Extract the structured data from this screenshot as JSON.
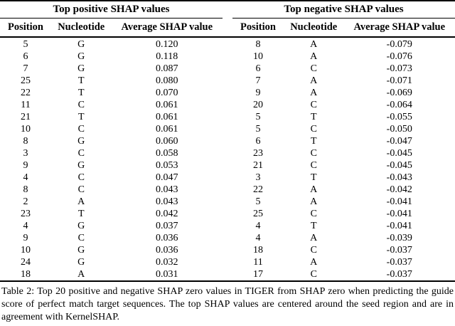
{
  "caption": "Table 2: Top 20 positive and negative SHAP zero values in TIGER from SHAP zero when predicting the guide score of perfect match target sequences. The top SHAP values are centered around the seed region and are in agreement with KernelSHAP.",
  "tables": [
    {
      "title": "Top positive SHAP values",
      "columns": [
        "Position",
        "Nucleotide",
        "Average SHAP value"
      ],
      "rows": [
        [
          "5",
          "G",
          "0.120"
        ],
        [
          "6",
          "G",
          "0.118"
        ],
        [
          "7",
          "G",
          "0.087"
        ],
        [
          "25",
          "T",
          "0.080"
        ],
        [
          "22",
          "T",
          "0.070"
        ],
        [
          "11",
          "C",
          "0.061"
        ],
        [
          "21",
          "T",
          "0.061"
        ],
        [
          "10",
          "C",
          "0.061"
        ],
        [
          "8",
          "G",
          "0.060"
        ],
        [
          "3",
          "C",
          "0.058"
        ],
        [
          "9",
          "G",
          "0.053"
        ],
        [
          "4",
          "C",
          "0.047"
        ],
        [
          "8",
          "C",
          "0.043"
        ],
        [
          "2",
          "A",
          "0.043"
        ],
        [
          "23",
          "T",
          "0.042"
        ],
        [
          "4",
          "G",
          "0.037"
        ],
        [
          "9",
          "C",
          "0.036"
        ],
        [
          "10",
          "G",
          "0.036"
        ],
        [
          "24",
          "G",
          "0.032"
        ],
        [
          "18",
          "A",
          "0.031"
        ]
      ]
    },
    {
      "title": "Top negative SHAP values",
      "columns": [
        "Position",
        "Nucleotide",
        "Average SHAP value"
      ],
      "rows": [
        [
          "8",
          "A",
          "-0.079"
        ],
        [
          "10",
          "A",
          "-0.076"
        ],
        [
          "6",
          "C",
          "-0.073"
        ],
        [
          "7",
          "A",
          "-0.071"
        ],
        [
          "9",
          "A",
          "-0.069"
        ],
        [
          "20",
          "C",
          "-0.064"
        ],
        [
          "5",
          "T",
          "-0.055"
        ],
        [
          "5",
          "C",
          "-0.050"
        ],
        [
          "6",
          "T",
          "-0.047"
        ],
        [
          "23",
          "C",
          "-0.045"
        ],
        [
          "21",
          "C",
          "-0.045"
        ],
        [
          "3",
          "T",
          "-0.043"
        ],
        [
          "22",
          "A",
          "-0.042"
        ],
        [
          "5",
          "A",
          "-0.041"
        ],
        [
          "25",
          "C",
          "-0.041"
        ],
        [
          "4",
          "T",
          "-0.041"
        ],
        [
          "4",
          "A",
          "-0.039"
        ],
        [
          "18",
          "C",
          "-0.037"
        ],
        [
          "11",
          "A",
          "-0.037"
        ],
        [
          "17",
          "C",
          "-0.037"
        ]
      ]
    }
  ]
}
